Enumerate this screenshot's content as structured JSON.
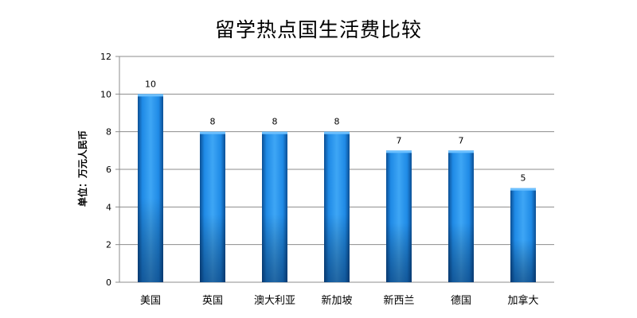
{
  "chart_data": {
    "type": "bar",
    "title": "留学热点国生活费比较",
    "xlabel": "",
    "ylabel": "单位：万元人民币",
    "categories": [
      "美国",
      "英国",
      "澳大利亚",
      "新加坡",
      "新西兰",
      "德国",
      "加拿大"
    ],
    "values": [
      10,
      8,
      8,
      8,
      7,
      7,
      5
    ],
    "ylim": [
      0,
      12
    ],
    "yticks": [
      0,
      2,
      4,
      6,
      8,
      10,
      12
    ],
    "grid": true,
    "legend": "none",
    "bar_color": "#1a7fd8"
  }
}
